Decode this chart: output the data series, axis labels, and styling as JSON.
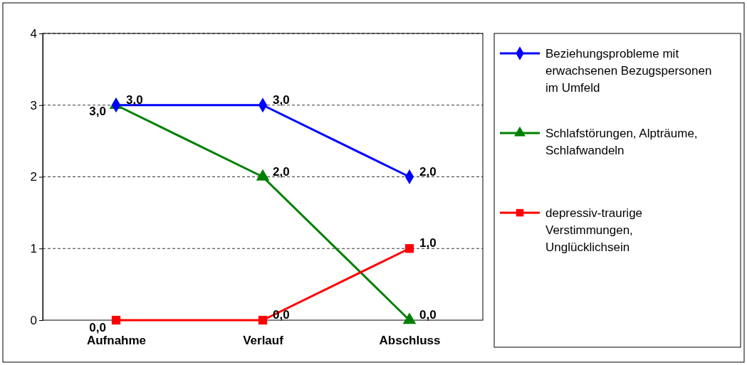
{
  "chart_data": {
    "type": "line",
    "categories": [
      "Aufnahme",
      "Verlauf",
      "Abschluss"
    ],
    "ylim": [
      0,
      4
    ],
    "yticks": [
      0,
      1,
      2,
      3,
      4
    ],
    "grid": "y",
    "legend": "right",
    "series": [
      {
        "name": "Beziehungsprobleme mit erwachsenen Bezugspersonen im Umfeld",
        "color": "#0000ff",
        "marker": "diamond",
        "values": [
          3,
          3,
          2
        ],
        "value_labels": [
          "3,0",
          "3,0",
          "2,0"
        ]
      },
      {
        "name": "Schlafstörungen, Alpträume, Schlafwandeln",
        "color": "#008000",
        "marker": "triangle",
        "values": [
          3,
          2,
          0
        ],
        "value_labels": [
          "3,0",
          "2,0",
          "0,0"
        ]
      },
      {
        "name": "depressiv-traurige Verstimmungen, Unglücklichsein",
        "color": "#ff0000",
        "marker": "square",
        "values": [
          0,
          0,
          1
        ],
        "value_labels": [
          "0,0",
          "0,0",
          "1,0"
        ]
      }
    ]
  }
}
